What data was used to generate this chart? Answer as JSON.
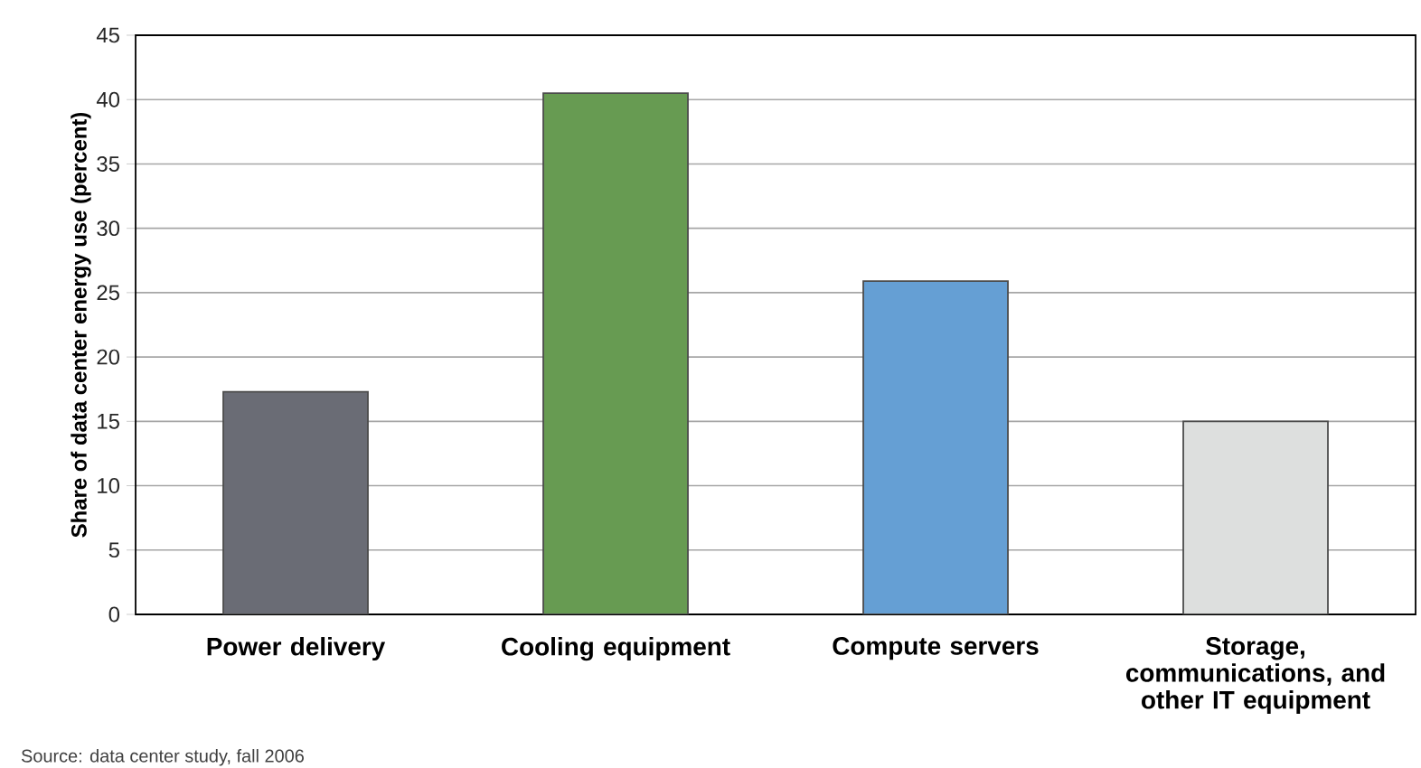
{
  "chart_data": {
    "type": "bar",
    "ylabel": "Share of data center energy use (percent)",
    "categories": [
      "Power delivery",
      "Cooling equipment",
      "Compute servers",
      "Storage, communications, and other IT equipment"
    ],
    "values": [
      17.3,
      40.5,
      25.9,
      15
    ],
    "colors": [
      "#6a6c75",
      "#679b52",
      "#659fd4",
      "#dddfde"
    ],
    "ylim": [
      0,
      45
    ],
    "yticks": [
      0,
      5,
      10,
      15,
      20,
      25,
      30,
      35,
      40,
      45
    ],
    "grid": "y",
    "annotations": [
      "Source: data center study, fall 2006"
    ]
  }
}
